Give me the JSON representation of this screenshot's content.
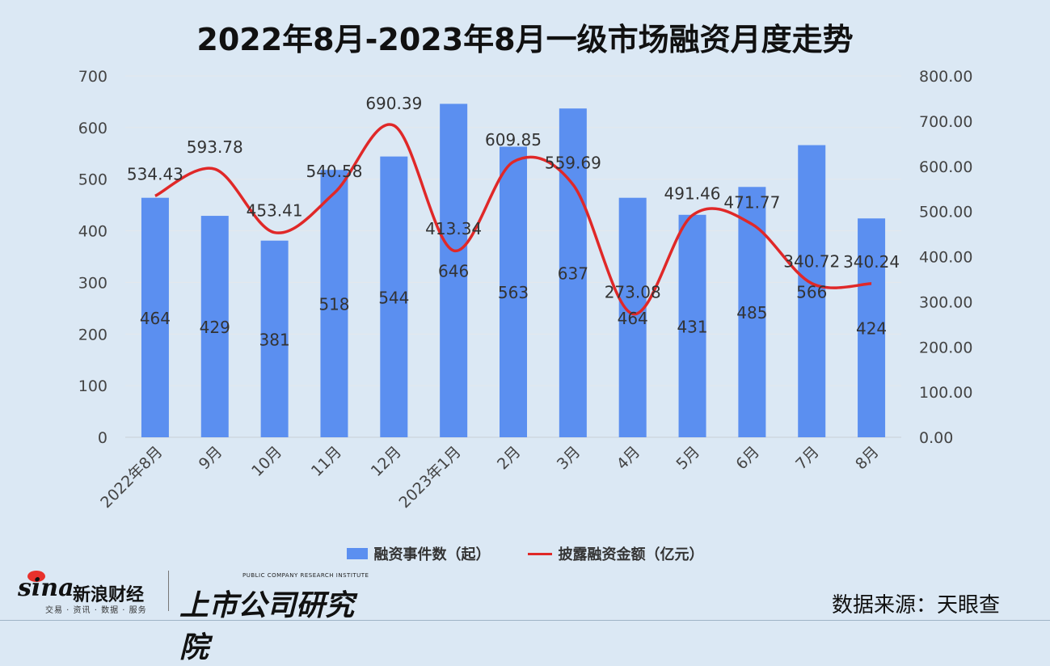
{
  "title": "2022年8月-2023年8月一级市场融资月度走势",
  "chart_data": {
    "type": "bar+line",
    "title": "2022年8月-2023年8月一级市场融资月度走势",
    "categories": [
      "2022年8月",
      "9月",
      "10月",
      "11月",
      "12月",
      "2023年1月",
      "2月",
      "3月",
      "4月",
      "5月",
      "6月",
      "7月",
      "8月"
    ],
    "series": [
      {
        "name": "融资事件数（起）",
        "type": "bar",
        "axis": "left",
        "color": "#5b8ff0",
        "values": [
          464,
          429,
          381,
          518,
          544,
          646,
          563,
          637,
          464,
          431,
          485,
          566,
          424
        ],
        "labels": [
          "464",
          "429",
          "381",
          "518",
          "544",
          "646",
          "563",
          "637",
          "464",
          "431",
          "485",
          "566",
          "424"
        ]
      },
      {
        "name": "披露融资金额（亿元）",
        "type": "line",
        "axis": "right",
        "color": "#e02828",
        "values": [
          534.43,
          593.78,
          453.41,
          540.58,
          690.39,
          413.34,
          609.85,
          559.69,
          273.08,
          491.46,
          471.77,
          340.72,
          340.24
        ],
        "labels": [
          "534.43",
          "593.78",
          "453.41",
          "540.58",
          "690.39",
          "413.34",
          "609.85",
          "559.69",
          "273.08",
          "491.46",
          "471.77",
          "340.72",
          "340.24"
        ]
      }
    ],
    "y_left": {
      "ylim": [
        0,
        700
      ],
      "ticks": [
        "0",
        "100",
        "200",
        "300",
        "400",
        "500",
        "600",
        "700"
      ]
    },
    "y_right": {
      "ylim": [
        0,
        800
      ],
      "ticks": [
        "0.00",
        "100.00",
        "200.00",
        "300.00",
        "400.00",
        "500.00",
        "600.00",
        "700.00",
        "800.00"
      ]
    },
    "grid": true,
    "legend_position": "bottom"
  },
  "legend": {
    "bar_label": "融资事件数（起）",
    "line_label": "披露融资金额（亿元）"
  },
  "source": "数据来源：天眼查",
  "logos": {
    "sina_brand": "sina",
    "sina_name": "新浪财经",
    "sina_tagline": "交易 · 资讯 · 数据 · 服务",
    "institute_en": "PUBLIC COMPANY RESEARCH INSTITUTE",
    "institute_cn": "上市公司研究院"
  }
}
